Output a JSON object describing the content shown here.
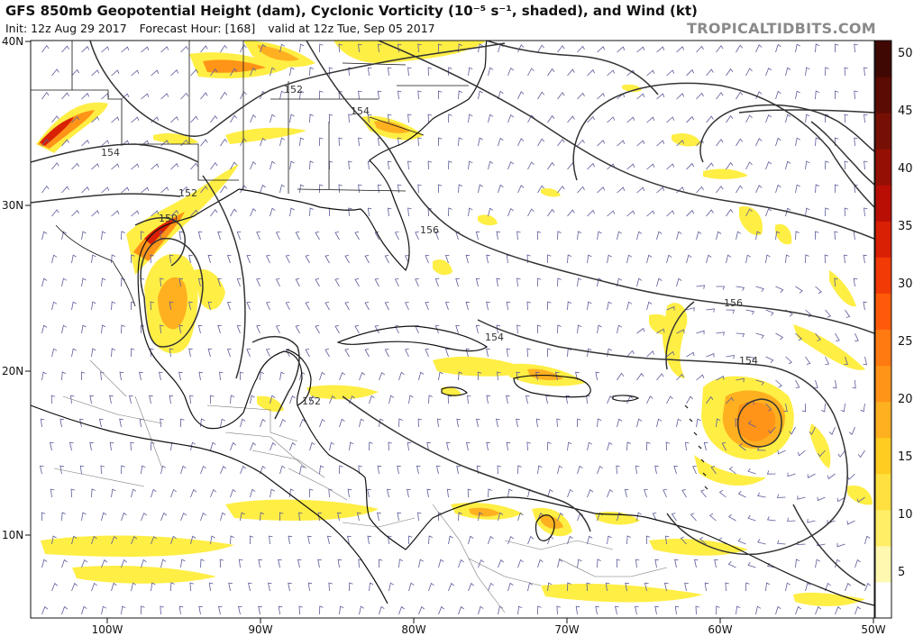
{
  "header": {
    "title": "GFS 850mb Geopotential Height (dam), Cyclonic Vorticity (10⁻⁵ s⁻¹, shaded), and Wind (kt)",
    "init": "Init: 12z Aug 29 2017",
    "forecast_hour": "Forecast Hour: [168]",
    "valid": "valid at 12z Tue, Sep 05 2017",
    "brand": "TROPICALTIDBITS.COM"
  },
  "axes": {
    "lat_labels": [
      "40N",
      "30N",
      "20N",
      "10N"
    ],
    "lon_labels": [
      "100W",
      "90W",
      "80W",
      "70W",
      "60W",
      "50W"
    ]
  },
  "colorbar": {
    "labels": [
      "50",
      "45",
      "40",
      "35",
      "30",
      "25",
      "20",
      "15",
      "10",
      "5"
    ],
    "colors": [
      "#ffffff",
      "#fff8b0",
      "#ffee66",
      "#ffe040",
      "#ffcc22",
      "#ffb020",
      "#ff9418",
      "#ff7a10",
      "#ff5a0a",
      "#f23a06",
      "#d82005",
      "#b80e04",
      "#951004",
      "#761004",
      "#5a0b03",
      "#400802"
    ]
  },
  "contours": {
    "labels": [
      "152",
      "154",
      "154",
      "152",
      "150",
      "156",
      "156",
      "154",
      "154",
      "152"
    ]
  },
  "colors": {
    "contour": "#333333",
    "coast": "#111111",
    "border": "#666666",
    "barb": "#5a5a9a",
    "vort_low": "#ffee44",
    "vort_mid": "#ffb020",
    "vort_high": "#d82005"
  }
}
